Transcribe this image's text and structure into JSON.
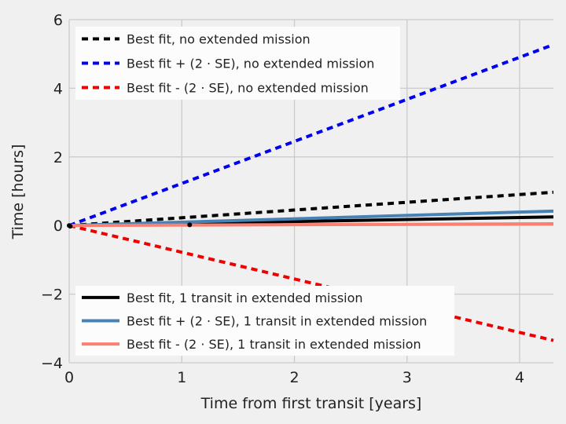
{
  "chart_data": {
    "type": "line",
    "title": "",
    "xlabel": "Time from first transit [years]",
    "ylabel": "Time [hours]",
    "xlim": [
      0,
      4.3
    ],
    "ylim": [
      -4,
      6
    ],
    "xticks": [
      0,
      1,
      2,
      3,
      4
    ],
    "xtick_labels": [
      "0",
      "1",
      "2",
      "3",
      "4"
    ],
    "yticks": [
      -4,
      -2,
      0,
      2,
      4,
      6
    ],
    "ytick_labels": [
      "−4",
      "−2",
      "0",
      "2",
      "4",
      "6"
    ],
    "grid": true,
    "background": "#f0f0f0",
    "grid_color": "#cbcbcb",
    "series": [
      {
        "name": "Best fit, no extended mission",
        "style": "dashed",
        "color": "#000000",
        "x": [
          0,
          4.3
        ],
        "y": [
          0,
          0.97
        ]
      },
      {
        "name": "Best fit + (2 · SE), no extended mission",
        "style": "dashed",
        "color": "#0000ee",
        "x": [
          0,
          4.3
        ],
        "y": [
          0,
          5.27
        ]
      },
      {
        "name": "Best fit - (2 · SE), no extended mission",
        "style": "dashed",
        "color": "#ee0000",
        "x": [
          0,
          4.3
        ],
        "y": [
          0,
          -3.35
        ]
      },
      {
        "name": "Best fit, 1 transit in extended mission",
        "style": "solid",
        "color": "#000000",
        "x": [
          0,
          4.3
        ],
        "y": [
          0,
          0.25
        ]
      },
      {
        "name": "Best fit + (2 · SE), 1 transit in extended mission",
        "style": "solid",
        "color": "#4682b4",
        "x": [
          0,
          4.3
        ],
        "y": [
          0,
          0.42
        ]
      },
      {
        "name": "Best fit - (2 · SE), 1 transit in extended mission",
        "style": "solid",
        "color": "#fa8072",
        "x": [
          0,
          4.3
        ],
        "y": [
          0,
          0.05
        ]
      }
    ],
    "markers": [
      {
        "x": 0.0,
        "y": 0.0
      },
      {
        "x": 0.01,
        "y": -0.02
      },
      {
        "x": 1.07,
        "y": 0.02
      }
    ],
    "legends": [
      {
        "placement": "upper-left",
        "series_indices": [
          0,
          1,
          2
        ]
      },
      {
        "placement": "lower-left",
        "series_indices": [
          3,
          4,
          5
        ]
      }
    ]
  }
}
